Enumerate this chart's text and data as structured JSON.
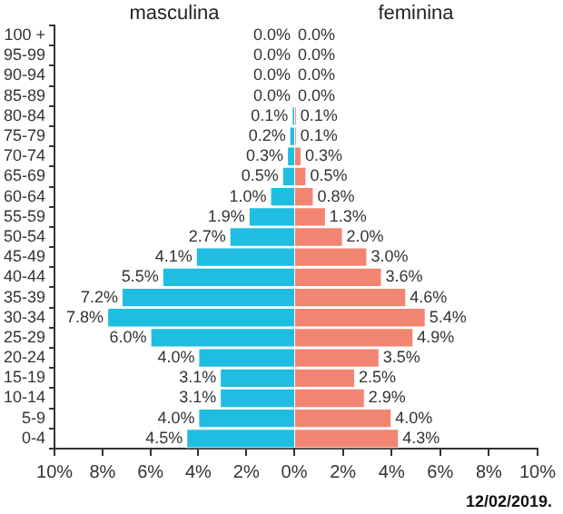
{
  "chart_data": [
    {
      "type": "bar",
      "orientation": "horizontal",
      "categories": [
        "100 +",
        "95-99",
        "90-94",
        "85-89",
        "80-84",
        "75-79",
        "70-74",
        "65-69",
        "60-64",
        "55-59",
        "50-54",
        "45-49",
        "40-44",
        "35-39",
        "30-34",
        "25-29",
        "20-24",
        "15-19",
        "10-14",
        "5-9",
        "0-4"
      ],
      "series": [
        {
          "name": "masculina",
          "color": "#1fbde0",
          "values": [
            0.0,
            0.0,
            0.0,
            0.0,
            0.1,
            0.2,
            0.3,
            0.5,
            1.0,
            1.9,
            2.7,
            4.1,
            5.5,
            7.2,
            7.8,
            6.0,
            4.0,
            3.1,
            3.1,
            4.0,
            4.5
          ],
          "value_labels": [
            "0.0%",
            "0.0%",
            "0.0%",
            "0.0%",
            "0.1%",
            "0.2%",
            "0.3%",
            "0.5%",
            "1.0%",
            "1.9%",
            "2.7%",
            "4.1%",
            "5.5%",
            "7.2%",
            "7.8%",
            "6.0%",
            "4.0%",
            "3.1%",
            "3.1%",
            "4.0%",
            "4.5%"
          ]
        }
      ],
      "xlim": [
        10,
        0
      ],
      "xticks": [
        {
          "value": 10,
          "label": "10%"
        },
        {
          "value": 8,
          "label": "8%"
        },
        {
          "value": 6,
          "label": "6%"
        },
        {
          "value": 4,
          "label": "4%"
        },
        {
          "value": 2,
          "label": "2%"
        }
      ]
    },
    {
      "type": "bar",
      "orientation": "horizontal",
      "categories": [
        null,
        null,
        null,
        null,
        null,
        null,
        null,
        null,
        null,
        null,
        null,
        null,
        null,
        null,
        null,
        null,
        null,
        null,
        null,
        null,
        null
      ],
      "series": [
        {
          "name": "feminina",
          "color": "#f28572",
          "values": [
            0.0,
            0.0,
            0.0,
            0.0,
            0.1,
            0.1,
            0.3,
            0.5,
            0.8,
            1.3,
            2.0,
            3.0,
            3.6,
            4.6,
            5.4,
            4.9,
            3.5,
            2.5,
            2.9,
            4.0,
            4.3
          ],
          "value_labels": [
            "0.0%",
            "0.0%",
            "0.0%",
            "0.0%",
            "0.1%",
            "0.1%",
            "0.3%",
            "0.5%",
            "0.8%",
            "1.3%",
            "2.0%",
            "3.0%",
            "3.6%",
            "4.6%",
            "5.4%",
            "4.9%",
            "3.5%",
            "2.5%",
            "2.9%",
            "4.0%",
            "4.3%"
          ]
        }
      ],
      "xlim": [
        0,
        10
      ],
      "xticks": [
        {
          "value": 0,
          "label": "0%"
        },
        {
          "value": 2,
          "label": "2%"
        },
        {
          "value": 4,
          "label": "4%"
        },
        {
          "value": 6,
          "label": "6%"
        },
        {
          "value": 8,
          "label": "8%"
        },
        {
          "value": 10,
          "label": "10%"
        }
      ],
      "tick_labels": "x",
      "annotations": [
        "12/02/2019."
      ]
    }
  ]
}
